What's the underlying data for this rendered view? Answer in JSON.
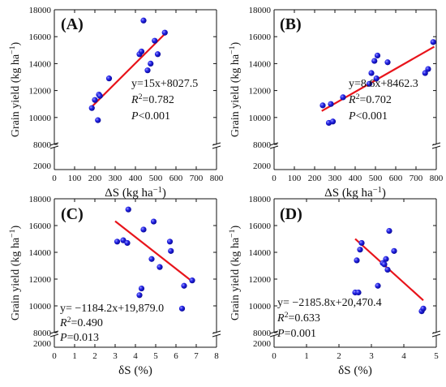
{
  "chart_data": [
    {
      "type": "scatter",
      "panel_label": "(A)",
      "xlabel": "ΔS (kg ha⁻¹)",
      "ylabel": "Grain yield (kg ha⁻¹)",
      "xlim": [
        0,
        800
      ],
      "xticks": [
        0,
        100,
        200,
        300,
        400,
        500,
        600,
        700,
        800
      ],
      "ylim": [
        8000,
        18000
      ],
      "yticks": [
        8000,
        10000,
        12000,
        14000,
        16000,
        18000
      ],
      "y_break_label": "2000",
      "series": [
        {
          "x": [
            185,
            200,
            215,
            220,
            225,
            270,
            420,
            430,
            440,
            460,
            475,
            495,
            510,
            545
          ],
          "y": [
            10700,
            11300,
            9800,
            11700,
            11600,
            12900,
            14700,
            14900,
            17200,
            13500,
            14000,
            15700,
            14700,
            16300
          ]
        }
      ],
      "fit_line": {
        "x": [
          185,
          555
        ],
        "slope": 15,
        "intercept": 8027.5,
        "color": "#e8141b"
      },
      "annotations": [
        "y=15x+8027.5",
        "R²=0.782",
        "P<0.001"
      ],
      "marker_color": "#2323e6"
    },
    {
      "type": "scatter",
      "panel_label": "(B)",
      "xlabel": "ΔS (kg ha⁻¹)",
      "ylabel": "Grain yield (kg ha⁻¹)",
      "xlim": [
        0,
        800
      ],
      "xticks": [
        0,
        100,
        200,
        300,
        400,
        500,
        600,
        700,
        800
      ],
      "ylim": [
        8000,
        18000
      ],
      "yticks": [
        8000,
        10000,
        12000,
        14000,
        16000,
        18000
      ],
      "y_break_label": "2000",
      "series": [
        {
          "x": [
            240,
            270,
            280,
            290,
            340,
            470,
            480,
            495,
            505,
            510,
            560,
            745,
            760,
            785
          ],
          "y": [
            10900,
            9600,
            11000,
            9700,
            11500,
            12500,
            13300,
            14200,
            12900,
            14600,
            14100,
            13300,
            13600,
            15600
          ]
        }
      ],
      "fit_line": {
        "x": [
          235,
          790
        ],
        "slope": 8.6,
        "intercept": 8462.3,
        "color": "#e8141b"
      },
      "annotations": [
        "y=8.6x+8462.3",
        "R²=0.702",
        "P<0.001"
      ],
      "marker_color": "#2323e6"
    },
    {
      "type": "scatter",
      "panel_label": "(C)",
      "xlabel": "δS (%)",
      "ylabel": "Grain yield (kg ha⁻¹)",
      "xlim": [
        0,
        8
      ],
      "xticks": [
        0,
        1,
        2,
        3,
        4,
        5,
        6,
        7,
        8
      ],
      "ylim": [
        8000,
        18000
      ],
      "yticks": [
        8000,
        10000,
        12000,
        14000,
        16000,
        18000
      ],
      "y_break_label": "2000",
      "series": [
        {
          "x": [
            3.1,
            3.4,
            3.6,
            3.65,
            4.2,
            4.3,
            4.4,
            4.8,
            4.9,
            5.2,
            5.7,
            5.75,
            6.3,
            6.4,
            6.8
          ],
          "y": [
            14800,
            14900,
            14700,
            17200,
            10800,
            11300,
            15700,
            13500,
            16300,
            12900,
            14800,
            14100,
            9800,
            11500,
            11900
          ]
        }
      ],
      "fit_line": {
        "x": [
          3.0,
          6.8
        ],
        "slope": -1184.2,
        "intercept": 19879.0,
        "color": "#e8141b"
      },
      "annotations": [
        "y= −1184.2x+19,879.0",
        "R²=0.490",
        "P=0.013"
      ],
      "marker_color": "#2323e6"
    },
    {
      "type": "scatter",
      "panel_label": "(D)",
      "xlabel": "δS (%)",
      "ylabel": "Grain yield (kg ha⁻¹)",
      "xlim": [
        0,
        5
      ],
      "xticks": [
        0,
        1,
        2,
        3,
        4,
        5
      ],
      "ylim": [
        8000,
        18000
      ],
      "yticks": [
        8000,
        10000,
        12000,
        14000,
        16000,
        18000
      ],
      "y_break_label": "2000",
      "series": [
        {
          "x": [
            2.5,
            2.55,
            2.6,
            2.65,
            2.7,
            3.2,
            3.35,
            3.4,
            3.45,
            3.5,
            3.55,
            3.7,
            4.55,
            4.6
          ],
          "y": [
            11000,
            13400,
            11000,
            14200,
            14700,
            11500,
            13200,
            13100,
            13500,
            12700,
            15600,
            14100,
            9600,
            9800
          ]
        }
      ],
      "fit_line": {
        "x": [
          2.5,
          4.6
        ],
        "slope": -2185.8,
        "intercept": 20470.4,
        "color": "#e8141b"
      },
      "annotations": [
        "y= −2185.8x+20,470.4",
        "R²=0.633",
        "P=0.001"
      ],
      "marker_color": "#2323e6"
    }
  ]
}
